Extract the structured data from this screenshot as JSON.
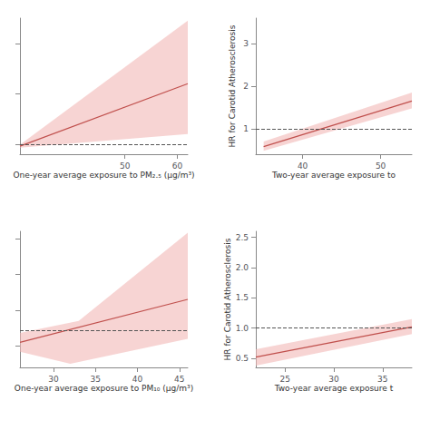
{
  "chart_data": [
    {
      "type": "line",
      "xlabel": "One-year average exposure to PM₂.₅ (μg/m³)",
      "xlim": [
        30,
        62
      ],
      "ylim": [
        0.8,
        3.5
      ],
      "xticks": [
        50,
        60
      ],
      "yticks": [
        1,
        2,
        3
      ],
      "tick_labels": "x",
      "grid": false,
      "series": [
        {
          "type": "band",
          "color": "#f2b8b6",
          "upper": {
            "x": [
              30,
              62
            ],
            "values": [
              0.99,
              3.45
            ]
          },
          "lower": {
            "x": [
              30,
              62
            ],
            "values": [
              0.93,
              1.2
            ]
          }
        },
        {
          "type": "line",
          "color": "#c0504d",
          "x": [
            30,
            62
          ],
          "values": [
            0.96,
            2.2
          ]
        },
        {
          "type": "hline",
          "color": "#555555",
          "line_style": "dashed",
          "values": [
            1.0
          ]
        }
      ]
    },
    {
      "type": "line",
      "xlabel": "Two-year average exposure to",
      "ylabel": "HR for Carotid Atherosclerosis",
      "xlim": [
        34,
        54
      ],
      "ylim": [
        0.4,
        3.6
      ],
      "xticks": [
        40,
        50
      ],
      "yticks": [
        1,
        2,
        3
      ],
      "grid": false,
      "series": [
        {
          "type": "band",
          "color": "#f2b8b6",
          "upper": {
            "x": [
              35,
              54
            ],
            "values": [
              0.7,
              1.85
            ]
          },
          "lower": {
            "x": [
              35,
              54
            ],
            "values": [
              0.48,
              1.48
            ]
          }
        },
        {
          "type": "line",
          "color": "#c0504d",
          "x": [
            35,
            54
          ],
          "values": [
            0.58,
            1.65
          ]
        },
        {
          "type": "hline",
          "color": "#555555",
          "line_style": "dashed",
          "values": [
            1.0
          ]
        }
      ]
    },
    {
      "type": "line",
      "xlabel": "One-year average exposure to PM₁₀ (μg/m³)",
      "xlim": [
        26,
        46
      ],
      "ylim": [
        0.7,
        2.6
      ],
      "xticks": [
        30,
        35,
        40,
        45
      ],
      "yticks": [
        1.0,
        1.5,
        2.0,
        2.5
      ],
      "tick_labels": "x",
      "grid": false,
      "series": [
        {
          "type": "band",
          "color": "#f2b8b6",
          "upper": {
            "x": [
              26,
              33,
              46
            ],
            "values": [
              1.18,
              1.35,
              2.58
            ]
          },
          "lower": {
            "x": [
              26,
              32,
              46
            ],
            "values": [
              0.92,
              0.75,
              1.1
            ]
          }
        },
        {
          "type": "line",
          "color": "#c0504d",
          "x": [
            26,
            46
          ],
          "values": [
            1.05,
            1.65
          ]
        },
        {
          "type": "hline",
          "color": "#555555",
          "line_style": "dashed",
          "values": [
            1.22
          ]
        }
      ]
    },
    {
      "type": "line",
      "xlabel": "Two-year average exposure t",
      "ylabel": "HR for Carotid Atherosclerosis",
      "xlim": [
        22,
        38
      ],
      "ylim": [
        0.35,
        2.6
      ],
      "xticks": [
        25,
        30,
        35
      ],
      "yticks": [
        0.5,
        {
          "value": 1,
          "label": "1.0"
        },
        1.5,
        {
          "value": 2,
          "label": "2.0"
        },
        2.5
      ],
      "grid": false,
      "series": [
        {
          "type": "band",
          "color": "#f2b8b6",
          "upper": {
            "x": [
              22,
              38
            ],
            "values": [
              0.65,
              1.15
            ]
          },
          "lower": {
            "x": [
              22,
              38
            ],
            "values": [
              0.38,
              0.9
            ]
          }
        },
        {
          "type": "line",
          "color": "#c0504d",
          "x": [
            22,
            38
          ],
          "values": [
            0.52,
            1.02
          ]
        },
        {
          "type": "hline",
          "color": "#555555",
          "line_style": "dashed",
          "values": [
            1.0
          ]
        }
      ]
    }
  ]
}
